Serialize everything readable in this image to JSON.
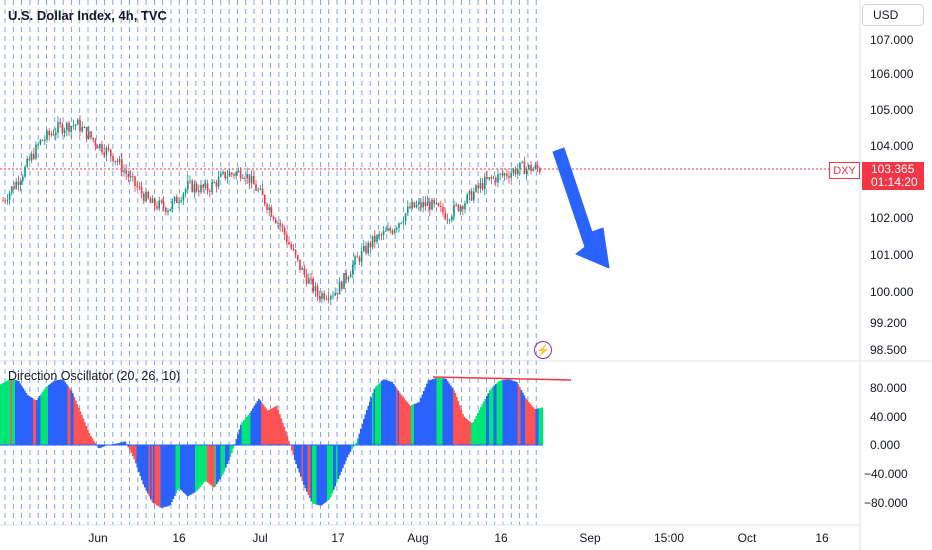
{
  "header": {
    "title": "U.S. Dollar Index, 4h, TVC",
    "currency_button": "USD"
  },
  "price_tag": {
    "symbol": "DXY",
    "price": "103.365",
    "countdown": "01:14:20"
  },
  "icons": {
    "alert": "lightning-bolt-icon"
  },
  "colors": {
    "up_candle": "#089981",
    "down_candle": "#f23645",
    "osc_blue": "#2962ff",
    "osc_green": "#00e676",
    "osc_red": "#ff5252",
    "arrow": "#2962ff"
  },
  "chart_data": [
    {
      "type": "candlestick",
      "title": "U.S. Dollar Index, 4h, TVC",
      "y_ticks": [
        "107.000",
        "106.000",
        "105.000",
        "104.000",
        "102.000",
        "101.000",
        "100.000",
        "99.200",
        "98.500"
      ],
      "x_ticks": [
        "Jun",
        "16",
        "Jul",
        "17",
        "Aug",
        "16",
        "Sep",
        "15:00",
        "Oct",
        "16"
      ],
      "last_price": 103.365,
      "close_path": [
        {
          "x": "May 16",
          "y": 102.5
        },
        {
          "x": "May 20",
          "y": 103.2
        },
        {
          "x": "May 24",
          "y": 104.1
        },
        {
          "x": "May 28",
          "y": 104.5
        },
        {
          "x": "May 31",
          "y": 104.6
        },
        {
          "x": "Jun 4",
          "y": 104.1
        },
        {
          "x": "Jun 7",
          "y": 103.7
        },
        {
          "x": "Jun 10",
          "y": 103.0
        },
        {
          "x": "Jun 13",
          "y": 102.4
        },
        {
          "x": "Jun 16",
          "y": 102.3
        },
        {
          "x": "Jun 20",
          "y": 102.9
        },
        {
          "x": "Jun 24",
          "y": 102.8
        },
        {
          "x": "Jun 28",
          "y": 103.2
        },
        {
          "x": "Jul 3",
          "y": 103.3
        },
        {
          "x": "Jul 6",
          "y": 102.6
        },
        {
          "x": "Jul 10",
          "y": 101.8
        },
        {
          "x": "Jul 13",
          "y": 100.7
        },
        {
          "x": "Jul 15",
          "y": 99.9
        },
        {
          "x": "Jul 18",
          "y": 100.0
        },
        {
          "x": "Jul 21",
          "y": 100.8
        },
        {
          "x": "Jul 24",
          "y": 101.4
        },
        {
          "x": "Jul 28",
          "y": 101.7
        },
        {
          "x": "Jul 31",
          "y": 102.3
        },
        {
          "x": "Aug 3",
          "y": 102.4
        },
        {
          "x": "Aug 7",
          "y": 102.1
        },
        {
          "x": "Aug 10",
          "y": 102.5
        },
        {
          "x": "Aug 14",
          "y": 103.0
        },
        {
          "x": "Aug 17",
          "y": 103.2
        },
        {
          "x": "Aug 21",
          "y": 103.4
        },
        {
          "x": "Aug 23",
          "y": 103.365
        }
      ],
      "annotation": "blue arrow pointing down"
    },
    {
      "type": "area",
      "title": "Direction Oscillator (20, 26, 10)",
      "y_ticks": [
        "80.000",
        "40.000",
        "0.000",
        "−40.000",
        "−80.000"
      ],
      "series": [
        {
          "values": [
            85,
            92,
            90,
            70,
            62,
            80,
            90,
            92,
            75,
            45,
            15,
            -5,
            0,
            2,
            5,
            -20,
            -55,
            -80,
            -88,
            -85,
            -60,
            -72,
            -65,
            -50,
            -60,
            -40,
            -10,
            30,
            45,
            65,
            48,
            55,
            20,
            -20,
            -55,
            -82,
            -85,
            -75,
            -45,
            -15,
            5,
            45,
            80,
            92,
            88,
            70,
            55,
            60,
            90,
            94,
            93,
            75,
            40,
            30,
            55,
            78,
            90,
            92,
            88,
            65,
            50,
            53
          ]
        }
      ],
      "annotation": "horizontal red line at oscillator peaks"
    }
  ]
}
